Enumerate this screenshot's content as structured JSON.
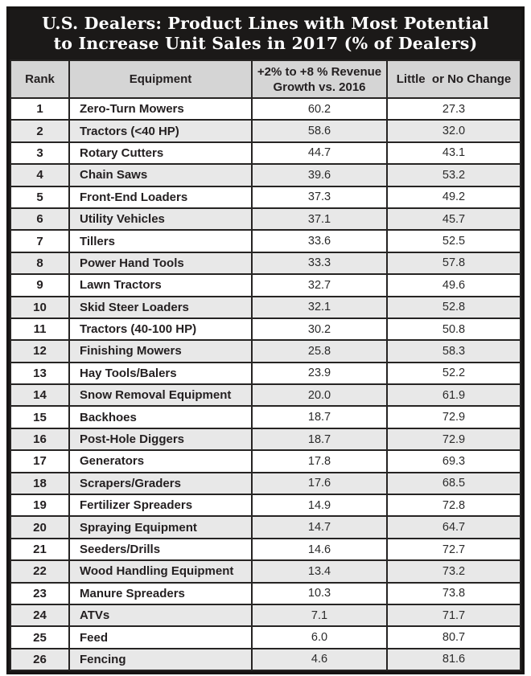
{
  "title": {
    "line1": "U.S. Dealers: Product Lines with Most Potential",
    "line2": "to Increase Unit Sales in 2017 (% of Dealers)"
  },
  "header": {
    "rank": "Rank",
    "equipment": "Equipment",
    "growth": "+2% to +8 % Revenue\nGrowth vs. 2016",
    "change": "Little  or No Change"
  },
  "colors": {
    "title_band_bg": "#1b1918",
    "title_text": "#ffffff",
    "header_row_bg": "#d5d5d5",
    "stripe_row_bg": "#e8e8e8",
    "grid_line": "#262423",
    "text": "#231f20"
  },
  "chart_data": {
    "type": "table",
    "title": "U.S. Dealers: Product Lines with Most Potential to Increase Unit Sales in 2017 (% of Dealers)",
    "columns": [
      "Rank",
      "Equipment",
      "+2% to +8 % Revenue Growth vs. 2016",
      "Little or No Change"
    ],
    "rows": [
      [
        "1",
        "Zero-Turn Mowers",
        "60.2",
        "27.3"
      ],
      [
        "2",
        "Tractors (<40 HP)",
        "58.6",
        "32.0"
      ],
      [
        "3",
        "Rotary Cutters",
        "44.7",
        "43.1"
      ],
      [
        "4",
        "Chain Saws",
        "39.6",
        "53.2"
      ],
      [
        "5",
        "Front-End Loaders",
        "37.3",
        "49.2"
      ],
      [
        "6",
        "Utility Vehicles",
        "37.1",
        "45.7"
      ],
      [
        "7",
        "Tillers",
        "33.6",
        "52.5"
      ],
      [
        "8",
        "Power Hand Tools",
        "33.3",
        "57.8"
      ],
      [
        "9",
        "Lawn Tractors",
        "32.7",
        "49.6"
      ],
      [
        "10",
        "Skid Steer Loaders",
        "32.1",
        "52.8"
      ],
      [
        "11",
        "Tractors (40-100 HP)",
        "30.2",
        "50.8"
      ],
      [
        "12",
        "Finishing Mowers",
        "25.8",
        "58.3"
      ],
      [
        "13",
        "Hay Tools/Balers",
        "23.9",
        "52.2"
      ],
      [
        "14",
        "Snow Removal Equipment",
        "20.0",
        "61.9"
      ],
      [
        "15",
        "Backhoes",
        "18.7",
        "72.9"
      ],
      [
        "16",
        "Post-Hole Diggers",
        "18.7",
        "72.9"
      ],
      [
        "17",
        "Generators",
        "17.8",
        "69.3"
      ],
      [
        "18",
        "Scrapers/Graders",
        "17.6",
        "68.5"
      ],
      [
        "19",
        "Fertilizer Spreaders",
        "14.9",
        "72.8"
      ],
      [
        "20",
        "Spraying Equipment",
        "14.7",
        "64.7"
      ],
      [
        "21",
        "Seeders/Drills",
        "14.6",
        "72.7"
      ],
      [
        "22",
        "Wood Handling Equipment",
        "13.4",
        "73.2"
      ],
      [
        "23",
        "Manure Spreaders",
        "10.3",
        "73.8"
      ],
      [
        "24",
        "ATVs",
        "7.1",
        "71.7"
      ],
      [
        "25",
        "Feed",
        "6.0",
        "80.7"
      ],
      [
        "26",
        "Fencing",
        "4.6",
        "81.6"
      ]
    ]
  }
}
